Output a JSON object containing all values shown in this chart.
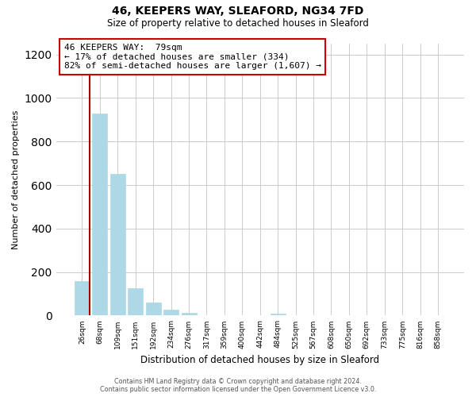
{
  "title": "46, KEEPERS WAY, SLEAFORD, NG34 7FD",
  "subtitle": "Size of property relative to detached houses in Sleaford",
  "xlabel": "Distribution of detached houses by size in Sleaford",
  "ylabel": "Number of detached properties",
  "bar_labels": [
    "26sqm",
    "68sqm",
    "109sqm",
    "151sqm",
    "192sqm",
    "234sqm",
    "276sqm",
    "317sqm",
    "359sqm",
    "400sqm",
    "442sqm",
    "484sqm",
    "525sqm",
    "567sqm",
    "608sqm",
    "650sqm",
    "692sqm",
    "733sqm",
    "775sqm",
    "816sqm",
    "858sqm"
  ],
  "bar_values": [
    160,
    930,
    650,
    125,
    60,
    28,
    12,
    0,
    0,
    0,
    0,
    10,
    0,
    0,
    0,
    0,
    0,
    0,
    0,
    0,
    0
  ],
  "bar_color": "#add8e6",
  "bar_edge_color": "#add8e6",
  "property_line_color": "#aa0000",
  "annotation_line1": "46 KEEPERS WAY:  79sqm",
  "annotation_line2": "← 17% of detached houses are smaller (334)",
  "annotation_line3": "82% of semi-detached houses are larger (1,607) →",
  "annotation_box_color": "#ffffff",
  "annotation_box_edge": "#cc0000",
  "ylim": [
    0,
    1250
  ],
  "yticks": [
    0,
    200,
    400,
    600,
    800,
    1000,
    1200
  ],
  "footer_line1": "Contains HM Land Registry data © Crown copyright and database right 2024.",
  "footer_line2": "Contains public sector information licensed under the Open Government Licence v3.0.",
  "bg_color": "#ffffff",
  "grid_color": "#cccccc"
}
